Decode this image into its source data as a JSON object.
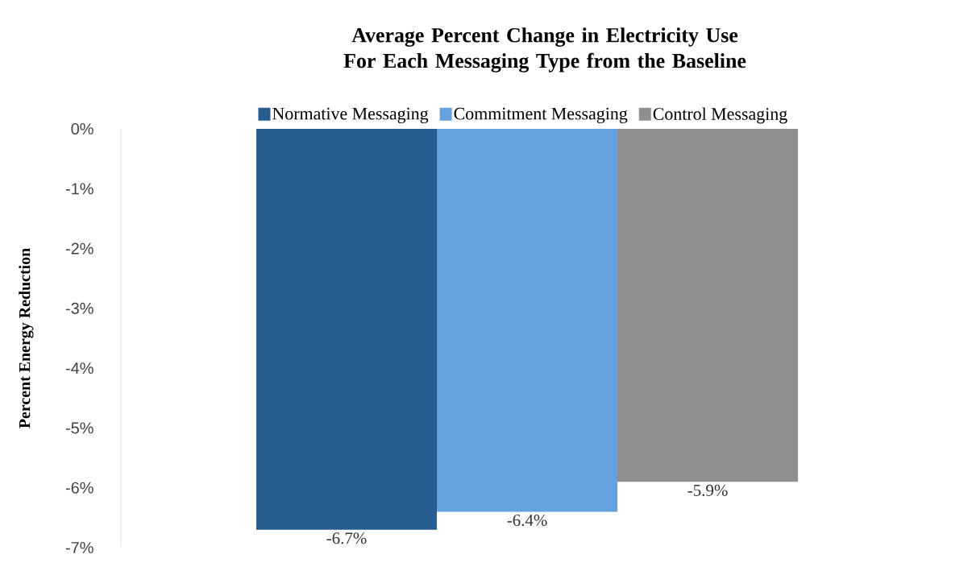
{
  "chart_data": {
    "type": "bar",
    "title": "Average Percent Change in Electricity Use For Each Messaging Type from the Baseline",
    "ylabel": "Percent Energy Reduction",
    "categories": [
      null
    ],
    "series": [
      {
        "name": "Normative Messaging",
        "color": "#275d8f",
        "values": [
          -6.7
        ],
        "value_labels": [
          "-6.7%"
        ]
      },
      {
        "name": "Commitment Messaging",
        "color": "#65a1dd",
        "values": [
          -6.4
        ],
        "value_labels": [
          "-6.4%"
        ]
      },
      {
        "name": "Control Messaging",
        "color": "#8f8f8f",
        "values": [
          -5.9
        ],
        "value_labels": [
          "-5.9%"
        ]
      }
    ],
    "ylim": [
      -7,
      0
    ],
    "yticks": [
      {
        "value": 0,
        "label": "0%"
      },
      {
        "value": -1,
        "label": "-1%"
      },
      {
        "value": -2,
        "label": "-2%"
      },
      {
        "value": -3,
        "label": "-3%"
      },
      {
        "value": -4,
        "label": "-4%"
      },
      {
        "value": -5,
        "label": "-5%"
      },
      {
        "value": -6,
        "label": "-6%"
      },
      {
        "value": -7,
        "label": "-7%"
      }
    ],
    "grid": false,
    "legend": "top"
  }
}
